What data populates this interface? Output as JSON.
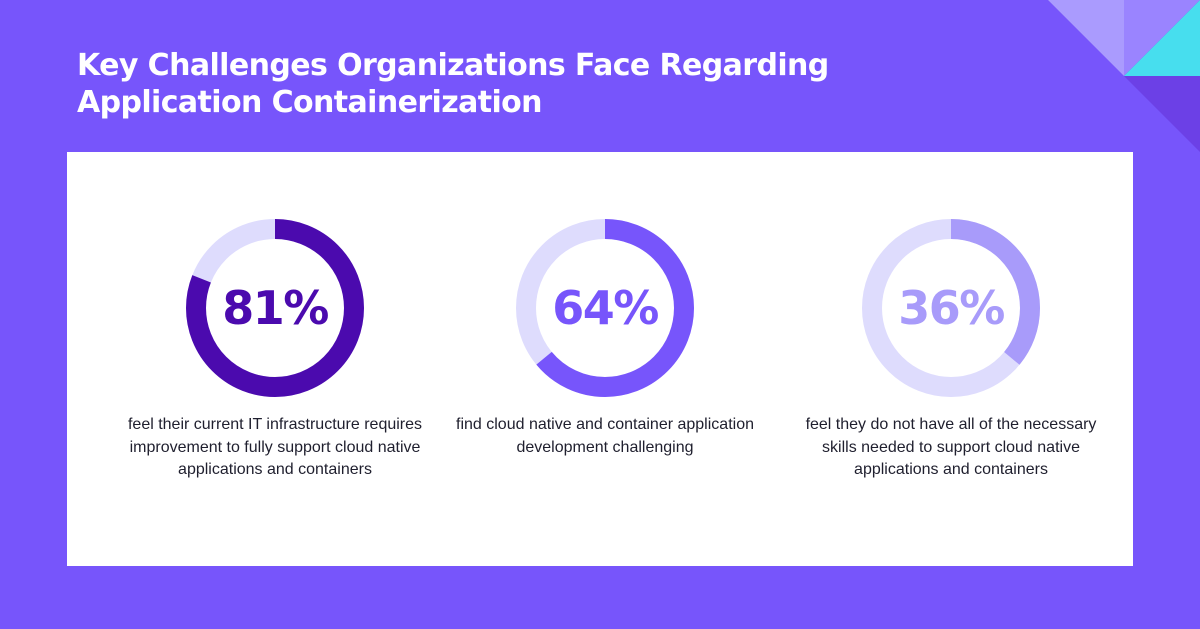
{
  "title": "Key Challenges Organizations Face Regarding Application Containerization",
  "colors": {
    "background": "#7755FB",
    "card": "#FFFFFF",
    "track": "#DEDCFD"
  },
  "chart_data": {
    "type": "pie",
    "variant": "donut",
    "items": [
      {
        "value": 81,
        "label": "81%",
        "caption": "feel their current IT infrastructure requires improvement to fully support cloud native applications and containers",
        "color": "#4B0AAE"
      },
      {
        "value": 64,
        "label": "64%",
        "caption": "find cloud native and container application development challenging",
        "color": "#7755FB"
      },
      {
        "value": 36,
        "label": "36%",
        "caption": "feel they do not have all of the necessary skills needed to support cloud native applications and containers",
        "color": "#A89BFA"
      }
    ]
  }
}
